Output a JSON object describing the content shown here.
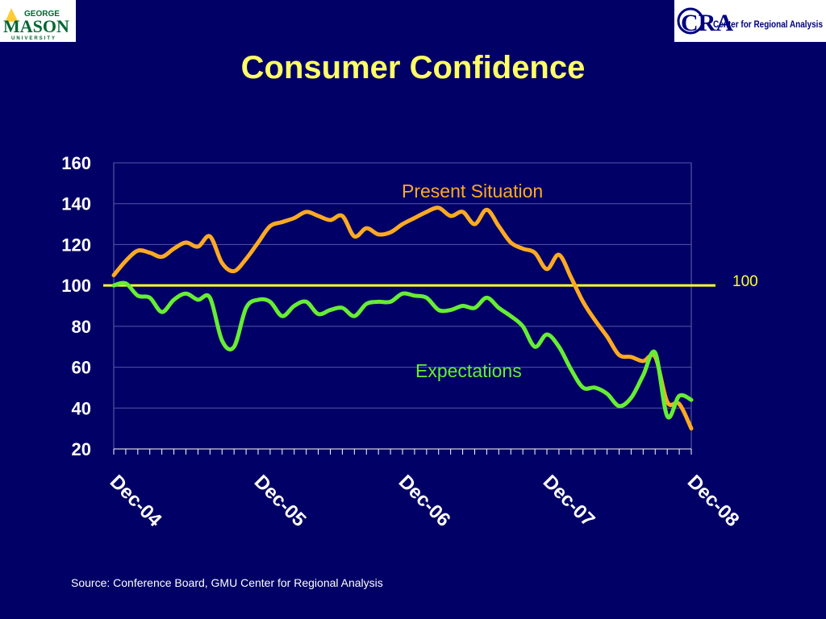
{
  "slide": {
    "title": "Consumer Confidence",
    "source": "Source: Conference Board, GMU Center for Regional Analysis",
    "background_color": "#000066",
    "title_color": "#ffff66"
  },
  "logos": {
    "left": {
      "line1": "GEORGE",
      "line2": "MASON",
      "line3": "UNIVERSITY",
      "color": "#006633",
      "accent": "#ffcc33"
    },
    "right": {
      "mark": "CRA",
      "text": "Center for Regional Analysis",
      "color": "#000080"
    }
  },
  "chart_data": {
    "type": "line",
    "title": "",
    "xlabel": "",
    "ylabel": "",
    "ylim": [
      20,
      160
    ],
    "yticks": [
      20,
      40,
      60,
      80,
      100,
      120,
      140,
      160
    ],
    "xlim": [
      "Dec-04",
      "Dec-08"
    ],
    "xticks": [
      "Dec-04",
      "Dec-05",
      "Dec-06",
      "Dec-07",
      "Dec-08"
    ],
    "grid": true,
    "reference_line": {
      "value": 100,
      "label": "100",
      "color": "#ffff33"
    },
    "x": [
      "Dec-04",
      "Jan-05",
      "Feb-05",
      "Mar-05",
      "Apr-05",
      "May-05",
      "Jun-05",
      "Jul-05",
      "Aug-05",
      "Sep-05",
      "Oct-05",
      "Nov-05",
      "Dec-05",
      "Jan-06",
      "Feb-06",
      "Mar-06",
      "Apr-06",
      "May-06",
      "Jun-06",
      "Jul-06",
      "Aug-06",
      "Sep-06",
      "Oct-06",
      "Nov-06",
      "Dec-06",
      "Jan-07",
      "Feb-07",
      "Mar-07",
      "Apr-07",
      "May-07",
      "Jun-07",
      "Jul-07",
      "Aug-07",
      "Sep-07",
      "Oct-07",
      "Nov-07",
      "Dec-07",
      "Jan-08",
      "Feb-08",
      "Mar-08",
      "Apr-08",
      "May-08",
      "Jun-08",
      "Jul-08",
      "Aug-08",
      "Sep-08",
      "Oct-08",
      "Nov-08",
      "Dec-08"
    ],
    "series": [
      {
        "name": "Present Situation",
        "color": "#ffaa22",
        "values": [
          105,
          112,
          117,
          116,
          114,
          118,
          121,
          119,
          124,
          111,
          107,
          113,
          121,
          129,
          131,
          133,
          136,
          134,
          132,
          134,
          124,
          128,
          125,
          126,
          130,
          133,
          136,
          138,
          134,
          136,
          130,
          137,
          129,
          121,
          118,
          116,
          108,
          115,
          104,
          92,
          83,
          75,
          66,
          65,
          63,
          65,
          43,
          42,
          30
        ]
      },
      {
        "name": "Expectations",
        "color": "#66ee33",
        "values": [
          100,
          101,
          95,
          94,
          87,
          93,
          96,
          93,
          94,
          73,
          70,
          89,
          93,
          92,
          85,
          90,
          92,
          86,
          88,
          89,
          85,
          91,
          92,
          92,
          96,
          95,
          94,
          88,
          88,
          90,
          89,
          94,
          89,
          85,
          80,
          70,
          76,
          70,
          59,
          50,
          50,
          47,
          41,
          45,
          56,
          67,
          36,
          46,
          44
        ]
      }
    ]
  }
}
